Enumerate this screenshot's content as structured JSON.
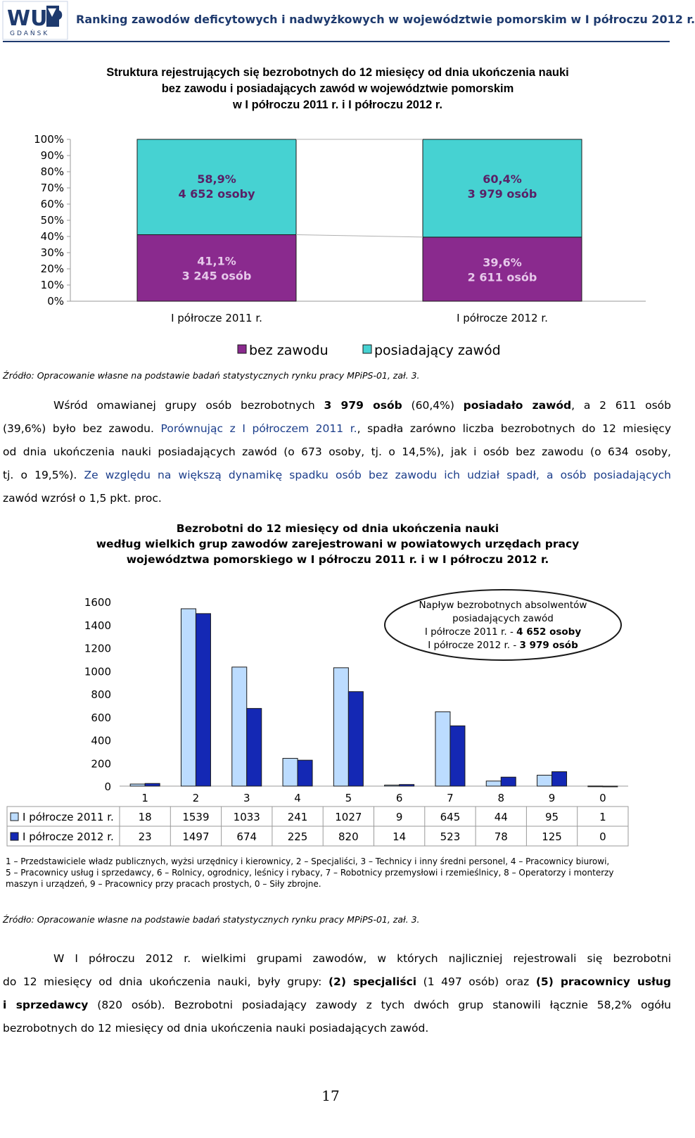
{
  "header": {
    "logo_text": "WUP",
    "logo_subtext": "GDAŃSK",
    "title": "Ranking zawodów deficytowych i nadwyżkowych w województwie pomorskim w I półroczu 2012 r."
  },
  "chart1": {
    "title_lines": [
      "Struktura rejestrujących się bezrobotnych do 12 miesięcy od dnia ukończenia nauki",
      "bez zawodu i posiadających zawód w województwie pomorskim",
      "w I półroczu 2011 r. i I półroczu 2012 r."
    ],
    "colors": {
      "bez_zawodu": "#8a2a8e",
      "posiadajacy": "#46d2d2"
    }
  },
  "chart_data": [
    {
      "type": "bar",
      "stacked": "percent",
      "categories": [
        "I półrocze 2011 r.",
        "I półrocze 2012 r."
      ],
      "series": [
        {
          "name": "bez zawodu",
          "values": [
            41.1,
            39.6
          ],
          "counts": [
            3245,
            2611
          ],
          "labels": [
            "41,1%",
            "39,6%"
          ],
          "count_labels": [
            "3 245 osób",
            "2 611 osób"
          ]
        },
        {
          "name": "posiadający zawód",
          "values": [
            58.9,
            60.4
          ],
          "counts": [
            4652,
            3979
          ],
          "labels": [
            "58,9%",
            "60,4%"
          ],
          "count_labels": [
            "4 652 osoby",
            "3 979 osób"
          ]
        }
      ],
      "yticks": [
        "100%",
        "90%",
        "80%",
        "70%",
        "60%",
        "50%",
        "40%",
        "30%",
        "20%",
        "10%",
        "0%"
      ],
      "ylim": [
        0,
        100
      ],
      "legend": "bottom"
    },
    {
      "type": "bar",
      "categories": [
        "1",
        "2",
        "3",
        "4",
        "5",
        "6",
        "7",
        "8",
        "9",
        "0"
      ],
      "series": [
        {
          "name": "I półrocze 2011 r.",
          "values": [
            18,
            1539,
            1033,
            241,
            1027,
            9,
            645,
            44,
            95,
            1
          ]
        },
        {
          "name": "I półrocze 2012 r.",
          "values": [
            23,
            1497,
            674,
            225,
            820,
            14,
            523,
            78,
            125,
            0
          ]
        }
      ],
      "yticks": [
        "1600",
        "1400",
        "1200",
        "1000",
        "800",
        "600",
        "400",
        "200",
        "0"
      ],
      "ylim": [
        0,
        1600
      ],
      "annotation_lines": [
        "Napływ bezrobotnych absolwentów",
        "posiadających zawód",
        "I półrocze 2011 r. - ",
        "4 652 osoby",
        "I półrocze 2012 r. - ",
        "3 979 osób"
      ],
      "colors": [
        "#bcdcff",
        "#1428b4"
      ],
      "legend": "data table"
    }
  ],
  "source1": "Źródło: Opracowanie własne na podstawie badań statystycznych rynku pracy MPiPS-01, zał. 3.",
  "paragraph1": {
    "l1_a": "Wśród omawianej grupy osób bezrobotnych ",
    "l1_b": "3 979 osób",
    "l1_c": " (60,4%) ",
    "l1_d": "posiadało zawód",
    "l1_e": ", a 2 611 osób",
    "l2_a": "(39,6%) było bez zawodu. ",
    "l2_b": "Porównując z I półroczem 2011 r.",
    "l2_c": ", spadła zarówno liczba bezrobotnych do 12 miesięcy",
    "l3": "od dnia ukończenia nauki posiadających zawód (o 673 osoby, tj. o 14,5%), jak i osób bez zawodu (o 634 osoby,",
    "l4_a": "tj. o 19,5%). ",
    "l4_b": "Ze względu na większą dynamikę spadku osób bez zawodu ich udział spadł, a osób posiadających",
    "l5": "zawód wzrósł o 1,5 pkt. proc."
  },
  "chart2": {
    "title_lines": [
      "Bezrobotni do 12 miesięcy od dnia ukończenia nauki",
      "według wielkich grup zawodów zarejestrowani w powiatowych urzędach pracy",
      "województwa pomorskiego w I półroczu 2011 r. i w I półroczu 2012 r."
    ]
  },
  "legend_note_lines": [
    "1 – Przedstawiciele władz publicznych, wyżsi urzędnicy i kierownicy, 2 – Specjaliści, 3 – Technicy i inny średni personel, 4 – Pracownicy biurowi,",
    "5 – Pracownicy usług i sprzedawcy, 6 – Rolnicy, ogrodnicy, leśnicy  i rybacy, 7 – Robotnicy przemysłowi i rzemieślnicy, 8 – Operatorzy i monterzy",
    "maszyn i urządzeń, 9 – Pracownicy przy pracach prostych, 0 – Siły zbrojne."
  ],
  "source2": "Źródło: Opracowanie własne na podstawie badań statystycznych rynku pracy MPiPS-01, zał. 3.",
  "paragraph2": {
    "l1": "W I półroczu 2012 r. wielkimi grupami zawodów, w których najliczniej rejestrowali się bezrobotni",
    "l2_a": "do 12 miesięcy od dnia ukończenia nauki, były grupy: ",
    "l2_b": "(2) specjaliści",
    "l2_c": " (1 497 osób) oraz ",
    "l2_d": "(5) pracownicy usług",
    "l3_a": "i sprzedawcy",
    "l3_b": " (820 osób). Bezrobotni posiadający zawody z tych dwóch grup stanowili łącznie 58,2% ogółu",
    "l4": "bezrobotnych do 12 miesięcy od dnia ukończenia nauki posiadających zawód."
  },
  "page_number": "17"
}
